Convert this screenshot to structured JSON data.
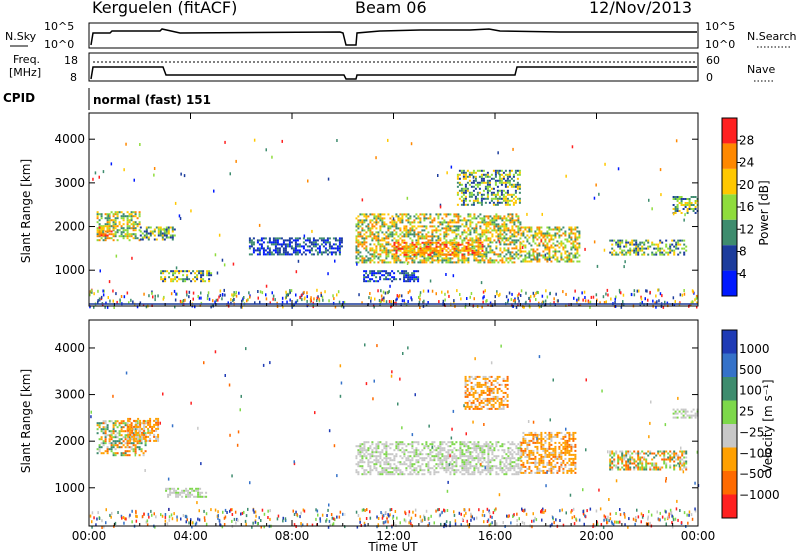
{
  "header": {
    "station": "Kerguelen (fitACF)",
    "beam": "Beam 06",
    "date": "12/Nov/2013"
  },
  "top_panels": {
    "nsky_label": "N.Sky",
    "nsearch_label": "N.Search",
    "noise_ticks": [
      "10^5",
      "10^0"
    ],
    "freq_label_1": "Freq.",
    "freq_label_2": "[MHz]",
    "freq_ticks": [
      "18",
      "8"
    ],
    "nave_label": "Nave",
    "nave_ticks": [
      "60",
      "0"
    ],
    "cpid_label": "CPID",
    "cpid_value": "normal (fast) 151"
  },
  "chart_data": [
    {
      "type": "heatmap",
      "name": "power",
      "ylabel": "Slant Range [km]",
      "xlabel": "",
      "x_ticks": [
        "00:00",
        "04:00",
        "08:00",
        "12:00",
        "16:00",
        "20:00",
        "00:00"
      ],
      "xlim_hours": [
        0,
        24
      ],
      "y_ticks": [
        1000,
        2000,
        3000,
        4000
      ],
      "ylim": [
        180,
        4600
      ],
      "colorbar": {
        "label": "Power [dB]",
        "ticks": [
          4,
          8,
          12,
          16,
          20,
          24,
          28
        ],
        "range": [
          0,
          32
        ],
        "colors": [
          "#0019ff",
          "#1c3c9c",
          "#3e8c6e",
          "#8fdc3c",
          "#ffc800",
          "#ff8800",
          "#ff2020"
        ]
      },
      "data_gap_hours": [
        10.1,
        10.5
      ],
      "echo_regions": [
        {
          "t0": 0.3,
          "t1": 2.0,
          "r0": 1700,
          "r1": 2350,
          "level": "high"
        },
        {
          "t0": 0.3,
          "t1": 1.0,
          "r0": 1800,
          "r1": 2000,
          "level": "max"
        },
        {
          "t0": 2.0,
          "t1": 3.4,
          "r0": 1700,
          "r1": 2000,
          "level": "mid"
        },
        {
          "t0": 2.8,
          "t1": 4.8,
          "r0": 750,
          "r1": 1000,
          "level": "mid"
        },
        {
          "t0": 6.3,
          "t1": 10.0,
          "r0": 1350,
          "r1": 1750,
          "level": "low"
        },
        {
          "t0": 10.5,
          "t1": 17.0,
          "r0": 1200,
          "r1": 2300,
          "level": "high"
        },
        {
          "t0": 12.0,
          "t1": 15.5,
          "r0": 1350,
          "r1": 1650,
          "level": "max"
        },
        {
          "t0": 10.8,
          "t1": 13.0,
          "r0": 750,
          "r1": 1000,
          "level": "low"
        },
        {
          "t0": 14.5,
          "t1": 17.0,
          "r0": 2500,
          "r1": 3300,
          "level": "mid"
        },
        {
          "t0": 17.0,
          "t1": 19.3,
          "r0": 1200,
          "r1": 2000,
          "level": "high"
        },
        {
          "t0": 20.5,
          "t1": 23.5,
          "r0": 1350,
          "r1": 1700,
          "level": "mid"
        },
        {
          "t0": 23.0,
          "t1": 24.0,
          "r0": 2300,
          "r1": 2700,
          "level": "mid"
        }
      ]
    },
    {
      "type": "heatmap",
      "name": "velocity",
      "ylabel": "Slant Range [km]",
      "xlabel": "Time UT",
      "x_ticks": [
        "00:00",
        "04:00",
        "08:00",
        "12:00",
        "16:00",
        "20:00",
        "00:00"
      ],
      "xlim_hours": [
        0,
        24
      ],
      "y_ticks": [
        1000,
        2000,
        3000,
        4000
      ],
      "ylim": [
        180,
        4600
      ],
      "colorbar": {
        "label": "Velocity [m s⁻¹]",
        "ticks": [
          "1000",
          "500",
          "100",
          "25",
          "−25",
          "−100",
          "−500",
          "−1000"
        ],
        "colors": [
          "#1f3bb5",
          "#3572c9",
          "#3e8c6e",
          "#7dd84a",
          "#c8c8c8",
          "#ffa000",
          "#ff6a00",
          "#ff2020"
        ]
      },
      "data_gap_hours": [
        10.1,
        10.5
      ],
      "echo_regions": [
        {
          "t0": 0.3,
          "t1": 2.2,
          "r0": 1700,
          "r1": 2450,
          "level": "mixed"
        },
        {
          "t0": 1.5,
          "t1": 2.7,
          "r0": 2000,
          "r1": 2500,
          "level": "neg"
        },
        {
          "t0": 3.0,
          "t1": 4.6,
          "r0": 800,
          "r1": 1000,
          "level": "ground"
        },
        {
          "t0": 10.5,
          "t1": 17.0,
          "r0": 1300,
          "r1": 2000,
          "level": "ground"
        },
        {
          "t0": 14.8,
          "t1": 16.5,
          "r0": 2700,
          "r1": 3400,
          "level": "neg"
        },
        {
          "t0": 17.0,
          "t1": 19.2,
          "r0": 1300,
          "r1": 2200,
          "level": "neg"
        },
        {
          "t0": 20.5,
          "t1": 23.5,
          "r0": 1400,
          "r1": 1800,
          "level": "mixed"
        },
        {
          "t0": 23.0,
          "t1": 24.0,
          "r0": 2500,
          "r1": 2700,
          "level": "ground"
        }
      ]
    }
  ]
}
